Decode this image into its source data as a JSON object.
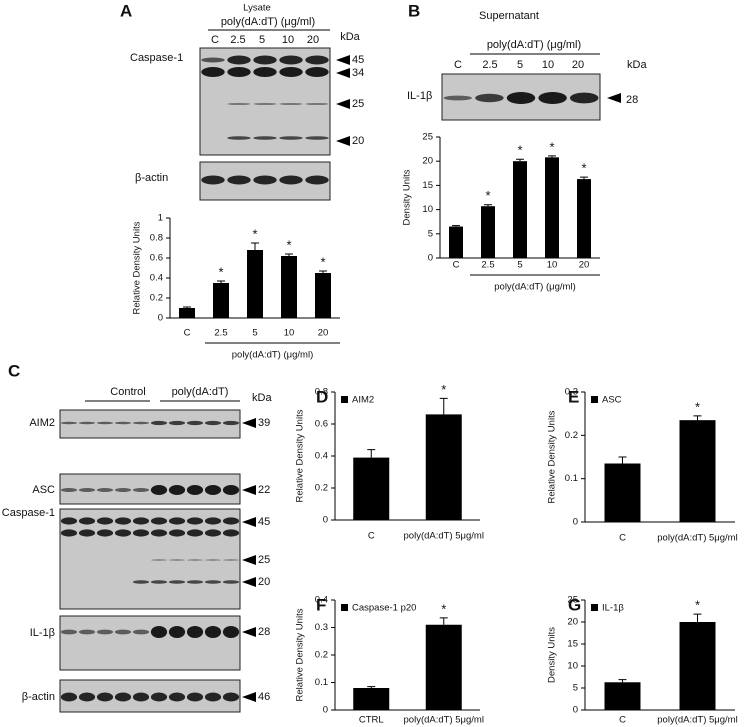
{
  "panel_labels": [
    "A",
    "B",
    "C",
    "D",
    "E",
    "F",
    "G"
  ],
  "blots": {
    "A": {
      "group_label": "Lysate",
      "treatment": "poly(dA:dT) (μg/ml)",
      "lanes": [
        "C",
        "2.5",
        "5",
        "10",
        "20"
      ],
      "unit": "kDa",
      "rows": [
        "Caspase-1",
        "β-actin"
      ],
      "markers": [
        45,
        34,
        25,
        20
      ]
    },
    "B": {
      "title": "Supernatant",
      "treatment": "poly(dA:dT) (μg/ml)",
      "lanes": [
        "C",
        "2.5",
        "5",
        "10",
        "20"
      ],
      "unit": "kDa",
      "rows": [
        "IL-1β"
      ],
      "markers": [
        28
      ]
    },
    "C": {
      "groups": [
        "Control",
        "poly(dA:dT)"
      ],
      "unit": "kDa",
      "rows": [
        "AIM2",
        "ASC",
        "Caspase-1",
        "IL-1β",
        "β-actin"
      ],
      "markers": [
        39,
        22,
        45,
        25,
        20,
        28,
        46
      ]
    }
  },
  "chart_data": [
    {
      "type": "bar",
      "y_label": "Relative Density Units",
      "x_label": "poly(dA:dT) (μg/ml)",
      "categories": [
        "C",
        "2.5",
        "5",
        "10",
        "20"
      ],
      "values": [
        0.1,
        0.35,
        0.68,
        0.62,
        0.45
      ],
      "errors": [
        0.01,
        0.02,
        0.07,
        0.02,
        0.02
      ],
      "significance": [
        null,
        "*",
        "*",
        "*",
        "*"
      ],
      "color": "#000000",
      "ylim": [
        0,
        1
      ],
      "yticks": [
        0,
        0.2,
        0.4,
        0.6,
        0.8,
        1
      ]
    },
    {
      "type": "bar",
      "y_label": "Density Units",
      "x_label": "poly(dA:dT) (μg/ml)",
      "categories": [
        "C",
        "2.5",
        "5",
        "10",
        "20"
      ],
      "values": [
        6.5,
        10.7,
        20,
        20.8,
        16.3
      ],
      "errors": [
        0.2,
        0.3,
        0.4,
        0.3,
        0.4
      ],
      "significance": [
        null,
        "*",
        "*",
        "*",
        "*"
      ],
      "color": "#000000",
      "ylim": [
        0,
        25
      ],
      "yticks": [
        0,
        5,
        10,
        15,
        20,
        25
      ]
    },
    {
      "type": "bar",
      "y_label": "Relative Density Units",
      "categories": [
        "C",
        "poly(dA:dT) 5μg/ml"
      ],
      "series": [
        {
          "name": "AIM2",
          "color": "#000000",
          "values": [
            0.39,
            0.66
          ],
          "errors": [
            0.05,
            0.1
          ]
        }
      ],
      "significance": [
        null,
        "*"
      ],
      "ylim": [
        0,
        0.8
      ],
      "yticks": [
        0,
        0.2,
        0.4,
        0.6,
        0.8
      ]
    },
    {
      "type": "bar",
      "y_label": "Relative Density Units",
      "categories": [
        "C",
        "poly(dA:dT) 5μg/ml"
      ],
      "series": [
        {
          "name": "ASC",
          "color": "#000000",
          "values": [
            0.135,
            0.235
          ],
          "errors": [
            0.015,
            0.01
          ]
        }
      ],
      "significance": [
        null,
        "*"
      ],
      "ylim": [
        0,
        0.3
      ],
      "yticks": [
        0,
        0.1,
        0.2,
        0.3
      ]
    },
    {
      "type": "bar",
      "y_label": "Relative Density Units",
      "categories": [
        "CTRL",
        "poly(dA:dT) 5μg/ml"
      ],
      "series": [
        {
          "name": "Caspase-1 p20",
          "color": "#000000",
          "values": [
            0.08,
            0.31
          ],
          "errors": [
            0.005,
            0.025
          ]
        }
      ],
      "significance": [
        null,
        "*"
      ],
      "ylim": [
        0,
        0.4
      ],
      "yticks": [
        0,
        0.1,
        0.2,
        0.3,
        0.4
      ]
    },
    {
      "type": "bar",
      "y_label": "Density Units",
      "categories": [
        "C",
        "poly(dA:dT) 5μg/ml"
      ],
      "series": [
        {
          "name": "IL-1β",
          "color": "#000000",
          "values": [
            6.3,
            20
          ],
          "errors": [
            0.6,
            1.8
          ]
        }
      ],
      "significance": [
        null,
        "*"
      ],
      "ylim": [
        0,
        25
      ],
      "yticks": [
        0,
        5,
        10,
        15,
        20,
        25
      ]
    }
  ]
}
